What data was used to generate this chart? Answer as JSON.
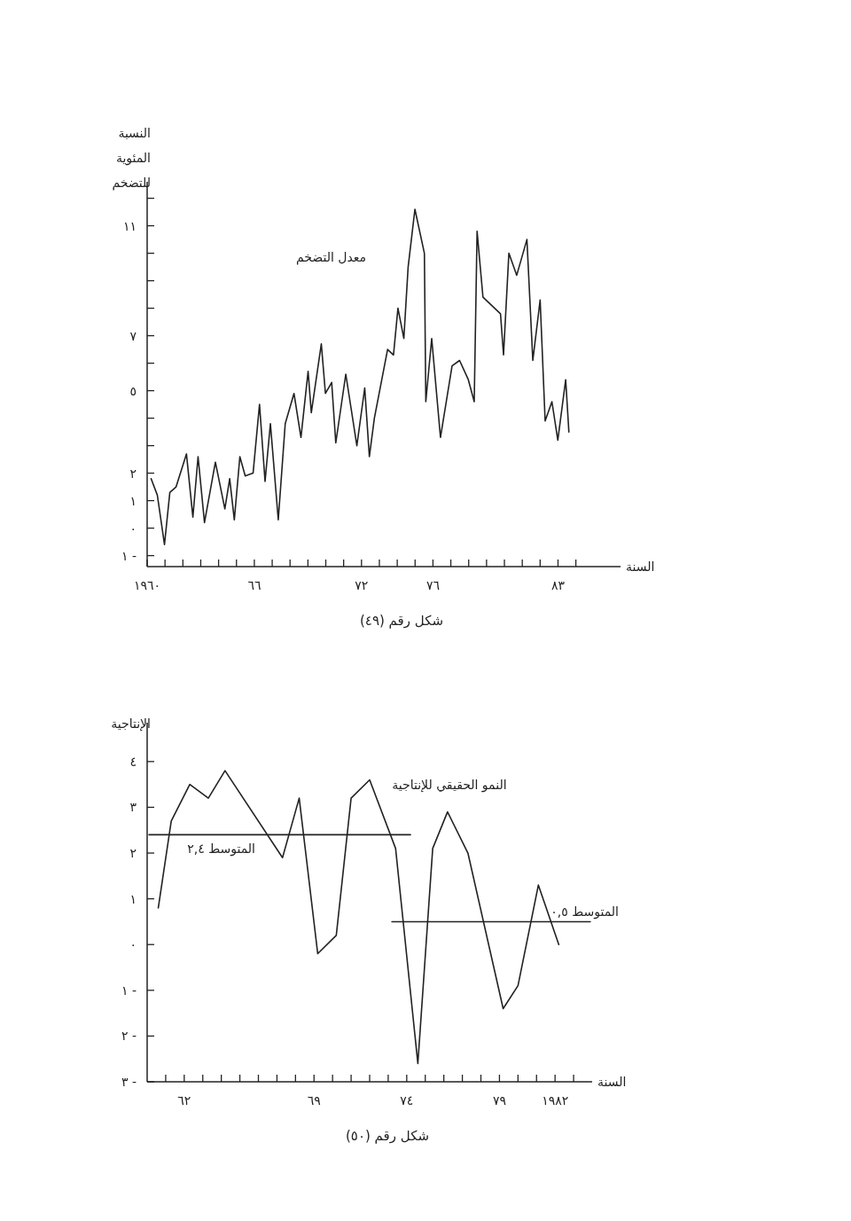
{
  "chart_data": [
    {
      "type": "line",
      "ylabel": "النسبة المئوية للتضخم",
      "xlabel": "السنة",
      "annotations": [
        "شكل رقم (٤٩)"
      ],
      "xlim": [
        1960,
        1986.5
      ],
      "ylim": [
        -1.4,
        12.6
      ],
      "xticks": [
        {
          "value": 1960,
          "label": "١٩٦٠"
        },
        {
          "value": 1961,
          "label": null
        },
        {
          "value": 1962,
          "label": null
        },
        {
          "value": 1963,
          "label": null
        },
        {
          "value": 1964,
          "label": null
        },
        {
          "value": 1965,
          "label": null
        },
        {
          "value": 1966,
          "label": "٦٦"
        },
        {
          "value": 1967,
          "label": null
        },
        {
          "value": 1968,
          "label": null
        },
        {
          "value": 1969,
          "label": null
        },
        {
          "value": 1970,
          "label": null
        },
        {
          "value": 1971,
          "label": null
        },
        {
          "value": 1972,
          "label": "٧٢"
        },
        {
          "value": 1973,
          "label": null
        },
        {
          "value": 1974,
          "label": null
        },
        {
          "value": 1975,
          "label": null
        },
        {
          "value": 1976,
          "label": "٧٦"
        },
        {
          "value": 1977,
          "label": null
        },
        {
          "value": 1978,
          "label": null
        },
        {
          "value": 1979,
          "label": null
        },
        {
          "value": 1980,
          "label": null
        },
        {
          "value": 1981,
          "label": null
        },
        {
          "value": 1982,
          "label": null
        },
        {
          "value": 1983,
          "label": "٨٣"
        },
        {
          "value": 1984,
          "label": null
        }
      ],
      "yticks": [
        {
          "value": -1,
          "label": "١ -"
        },
        {
          "value": 0,
          "label": "٠"
        },
        {
          "value": 1,
          "label": "١"
        },
        {
          "value": 2,
          "label": "٢"
        },
        {
          "value": 3,
          "label": null
        },
        {
          "value": 4,
          "label": null
        },
        {
          "value": 5,
          "label": "٥"
        },
        {
          "value": 6,
          "label": null
        },
        {
          "value": 7,
          "label": "٧"
        },
        {
          "value": 8,
          "label": null
        },
        {
          "value": 9,
          "label": null
        },
        {
          "value": 10,
          "label": null
        },
        {
          "value": 11,
          "label": "١١"
        },
        {
          "value": 12,
          "label": null
        }
      ],
      "series": [
        {
          "name": "معدل التضخم",
          "color": "#222222",
          "x": [
            1960.22,
            1960.57,
            1960.97,
            1961.27,
            1961.62,
            1962.2,
            1962.56,
            1962.85,
            1963.21,
            1963.82,
            1964.35,
            1964.62,
            1964.88,
            1965.19,
            1965.49,
            1965.93,
            1966.29,
            1966.6,
            1966.9,
            1967.34,
            1967.73,
            1968.22,
            1968.61,
            1969.01,
            1969.19,
            1969.75,
            1969.98,
            1970.33,
            1970.56,
            1971.12,
            1971.74,
            1972.18,
            1972.44,
            1972.72,
            1973.46,
            1973.79,
            1974.04,
            1974.37,
            1974.61,
            1974.99,
            1975.52,
            1975.6,
            1975.93,
            1976.42,
            1977.07,
            1977.49,
            1977.98,
            1978.31,
            1978.47,
            1978.8,
            1979.78,
            1979.95,
            1980.25,
            1980.69,
            1981.26,
            1981.59,
            1982.0,
            1982.28,
            1982.66,
            1982.99,
            1983.43,
            1983.61
          ],
          "values": [
            1.8,
            1.2,
            -0.6,
            1.3,
            1.5,
            2.7,
            0.4,
            2.6,
            0.2,
            2.4,
            0.7,
            1.8,
            0.3,
            2.6,
            1.9,
            2.0,
            4.5,
            1.7,
            3.8,
            0.3,
            3.8,
            4.9,
            3.3,
            5.7,
            4.2,
            6.7,
            4.9,
            5.3,
            3.1,
            5.6,
            3.0,
            5.1,
            2.6,
            4.0,
            6.5,
            6.3,
            8.0,
            6.9,
            9.5,
            11.6,
            10.0,
            4.6,
            6.9,
            3.3,
            5.9,
            6.1,
            5.4,
            4.6,
            10.8,
            8.4,
            7.8,
            6.3,
            10.0,
            9.2,
            10.5,
            6.1,
            8.3,
            3.9,
            4.6,
            3.2,
            5.4,
            3.5
          ]
        }
      ]
    },
    {
      "type": "line",
      "ylabel": "الإنتاجية",
      "xlabel": "السنة",
      "annotations": [
        "شكل رقم (٥٠)"
      ],
      "xlim": [
        1960,
        1984
      ],
      "ylim": [
        -3,
        4.85
      ],
      "xticks": [
        {
          "value": 1961,
          "label": null
        },
        {
          "value": 1962,
          "label": "٦٢"
        },
        {
          "value": 1963,
          "label": null
        },
        {
          "value": 1964,
          "label": null
        },
        {
          "value": 1965,
          "label": null
        },
        {
          "value": 1966,
          "label": null
        },
        {
          "value": 1967,
          "label": null
        },
        {
          "value": 1968,
          "label": null
        },
        {
          "value": 1969,
          "label": "٦٩"
        },
        {
          "value": 1970,
          "label": null
        },
        {
          "value": 1971,
          "label": null
        },
        {
          "value": 1972,
          "label": null
        },
        {
          "value": 1973,
          "label": null
        },
        {
          "value": 1974,
          "label": "٧٤"
        },
        {
          "value": 1975,
          "label": null
        },
        {
          "value": 1976,
          "label": null
        },
        {
          "value": 1977,
          "label": null
        },
        {
          "value": 1978,
          "label": null
        },
        {
          "value": 1979,
          "label": "٧٩"
        },
        {
          "value": 1980,
          "label": null
        },
        {
          "value": 1981,
          "label": null
        },
        {
          "value": 1982,
          "label": "١٩٨٢"
        },
        {
          "value": 1983,
          "label": null
        }
      ],
      "yticks": [
        {
          "value": -3,
          "label": "٣ -"
        },
        {
          "value": -2,
          "label": "٢ -"
        },
        {
          "value": -1,
          "label": "١ -"
        },
        {
          "value": 0,
          "label": "٠"
        },
        {
          "value": 1,
          "label": "١"
        },
        {
          "value": 2,
          "label": "٢"
        },
        {
          "value": 3,
          "label": "٣"
        },
        {
          "value": 4,
          "label": "٤"
        }
      ],
      "series": [
        {
          "name": "النمو الحقيقي للإنتاجية",
          "color": "#222222",
          "x": [
            1960.6,
            1961.3,
            1962.3,
            1963.3,
            1964.2,
            1967.3,
            1968.2,
            1969.2,
            1970.2,
            1971.0,
            1972.0,
            1973.4,
            1974.6,
            1975.4,
            1976.2,
            1977.3,
            1979.2,
            1980.0,
            1981.1,
            1982.2
          ],
          "values": [
            0.8,
            2.7,
            3.5,
            3.2,
            3.8,
            1.9,
            3.2,
            -0.2,
            0.2,
            3.2,
            3.6,
            2.1,
            -2.6,
            2.1,
            2.9,
            2.0,
            -1.4,
            -0.9,
            1.3,
            0.0
          ]
        },
        {
          "name": "المتوسط ٢,٤",
          "color": "#222222",
          "x": [
            1960.1,
            1974.2
          ],
          "values": [
            2.4,
            2.4
          ]
        },
        {
          "name": "المتوسط ٠,٥",
          "color": "#222222",
          "x": [
            1973.2,
            1983.9
          ],
          "values": [
            0.5,
            0.5
          ]
        }
      ]
    }
  ]
}
